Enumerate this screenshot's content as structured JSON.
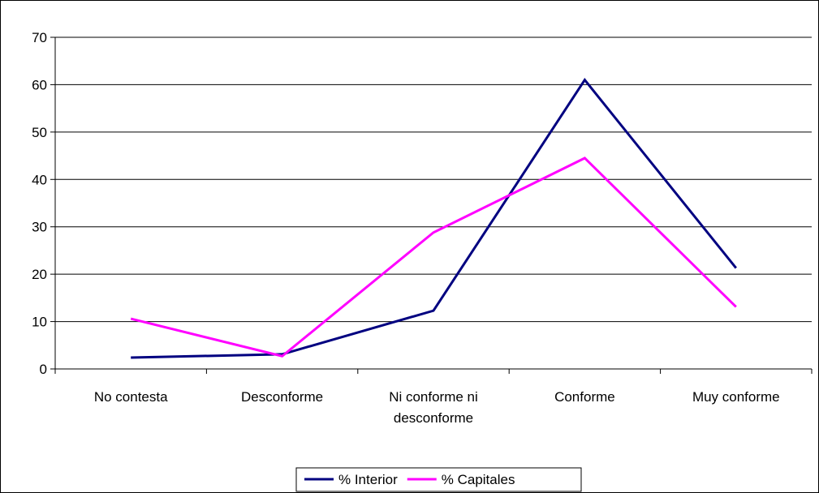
{
  "chart_data": {
    "type": "line",
    "categories": [
      "No contesta",
      "Desconforme",
      "Ni conforme ni desconforme",
      "Conforme",
      "Muy conforme"
    ],
    "series": [
      {
        "name": "% Interior",
        "color": "#000080",
        "values": [
          2.4,
          3.1,
          12.3,
          61,
          21.3
        ]
      },
      {
        "name": "% Capitales",
        "color": "#ff00ff",
        "values": [
          10.6,
          2.7,
          28.8,
          44.5,
          13.1
        ]
      }
    ],
    "ylim": [
      0,
      70
    ],
    "yticks": [
      0,
      10,
      20,
      30,
      40,
      50,
      60,
      70
    ],
    "grid": true,
    "legend": "bottom"
  }
}
